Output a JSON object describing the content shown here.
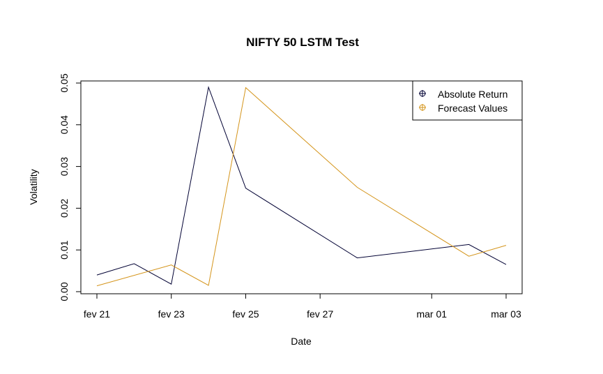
{
  "chart_data": {
    "type": "line",
    "title": "NIFTY 50 LSTM Test",
    "xlabel": "Date",
    "ylabel": "Volatility",
    "x": [
      "2020-02-21",
      "2020-02-22",
      "2020-02-23",
      "2020-02-24",
      "2020-02-25",
      "2020-02-28",
      "2020-03-02",
      "2020-03-03"
    ],
    "x_ticks": [
      {
        "date": "2020-02-21",
        "label": "fev 21"
      },
      {
        "date": "2020-02-23",
        "label": "fev 23"
      },
      {
        "date": "2020-02-25",
        "label": "fev 25"
      },
      {
        "date": "2020-02-27",
        "label": "fev 27"
      },
      {
        "date": "2020-03-01",
        "label": "mar 01"
      },
      {
        "date": "2020-03-03",
        "label": "mar 03"
      }
    ],
    "xlim": [
      "2020-02-21",
      "2020-03-03"
    ],
    "ylim": [
      0,
      0.05
    ],
    "y_ticks": [
      "0.00",
      "0.01",
      "0.02",
      "0.03",
      "0.04",
      "0.05"
    ],
    "series": [
      {
        "name": "Absolute Return",
        "color": "#000033",
        "points": [
          [
            "2020-02-21",
            0.004
          ],
          [
            "2020-02-22",
            0.0067
          ],
          [
            "2020-02-23",
            0.0018
          ],
          [
            "2020-02-24",
            0.049
          ],
          [
            "2020-02-25",
            0.0248
          ],
          [
            "2020-02-28",
            0.0081
          ],
          [
            "2020-03-02",
            0.0113
          ],
          [
            "2020-03-03",
            0.0065
          ]
        ]
      },
      {
        "name": "Forecast Values",
        "color": "#d4941a",
        "points": [
          [
            "2020-02-21",
            0.0014
          ],
          [
            "2020-02-23",
            0.0064
          ],
          [
            "2020-02-24",
            0.0015
          ],
          [
            "2020-02-25",
            0.0489
          ],
          [
            "2020-02-28",
            0.025
          ],
          [
            "2020-03-02",
            0.0085
          ],
          [
            "2020-03-03",
            0.0111
          ]
        ]
      }
    ],
    "legend": "top-right",
    "grid": false
  }
}
